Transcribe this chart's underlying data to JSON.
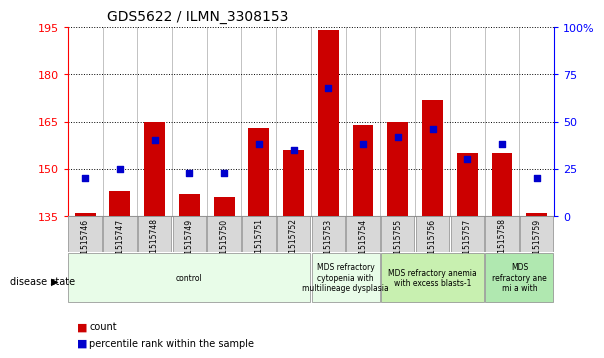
{
  "title": "GDS5622 / ILMN_3308153",
  "samples": [
    "GSM1515746",
    "GSM1515747",
    "GSM1515748",
    "GSM1515749",
    "GSM1515750",
    "GSM1515751",
    "GSM1515752",
    "GSM1515753",
    "GSM1515754",
    "GSM1515755",
    "GSM1515756",
    "GSM1515757",
    "GSM1515758",
    "GSM1515759"
  ],
  "counts": [
    136,
    143,
    165,
    142,
    141,
    163,
    156,
    194,
    164,
    165,
    172,
    155,
    155,
    136
  ],
  "percentiles": [
    20,
    25,
    40,
    23,
    23,
    38,
    35,
    68,
    38,
    42,
    46,
    30,
    38,
    20
  ],
  "ylim_left": [
    135,
    195
  ],
  "ylim_right": [
    0,
    100
  ],
  "yticks_left": [
    135,
    150,
    165,
    180,
    195
  ],
  "yticks_right": [
    0,
    25,
    50,
    75,
    100
  ],
  "bar_color": "#cc0000",
  "dot_color": "#0000cc",
  "tick_bg_color": "#d8d8d8",
  "disease_groups": [
    {
      "label": "control",
      "start": 0,
      "end": 7,
      "color": "#e8fce8"
    },
    {
      "label": "MDS refractory\ncytopenia with\nmultilineage dysplasia",
      "start": 7,
      "end": 9,
      "color": "#e8fce8"
    },
    {
      "label": "MDS refractory anemia\nwith excess blasts-1",
      "start": 9,
      "end": 12,
      "color": "#c8f0b0"
    },
    {
      "label": "MDS\nrefractory ane\nmi a with",
      "start": 12,
      "end": 14,
      "color": "#b0e8b0"
    }
  ],
  "disease_state_label": "disease state",
  "legend_count_label": "count",
  "legend_percentile_label": "percentile rank within the sample"
}
